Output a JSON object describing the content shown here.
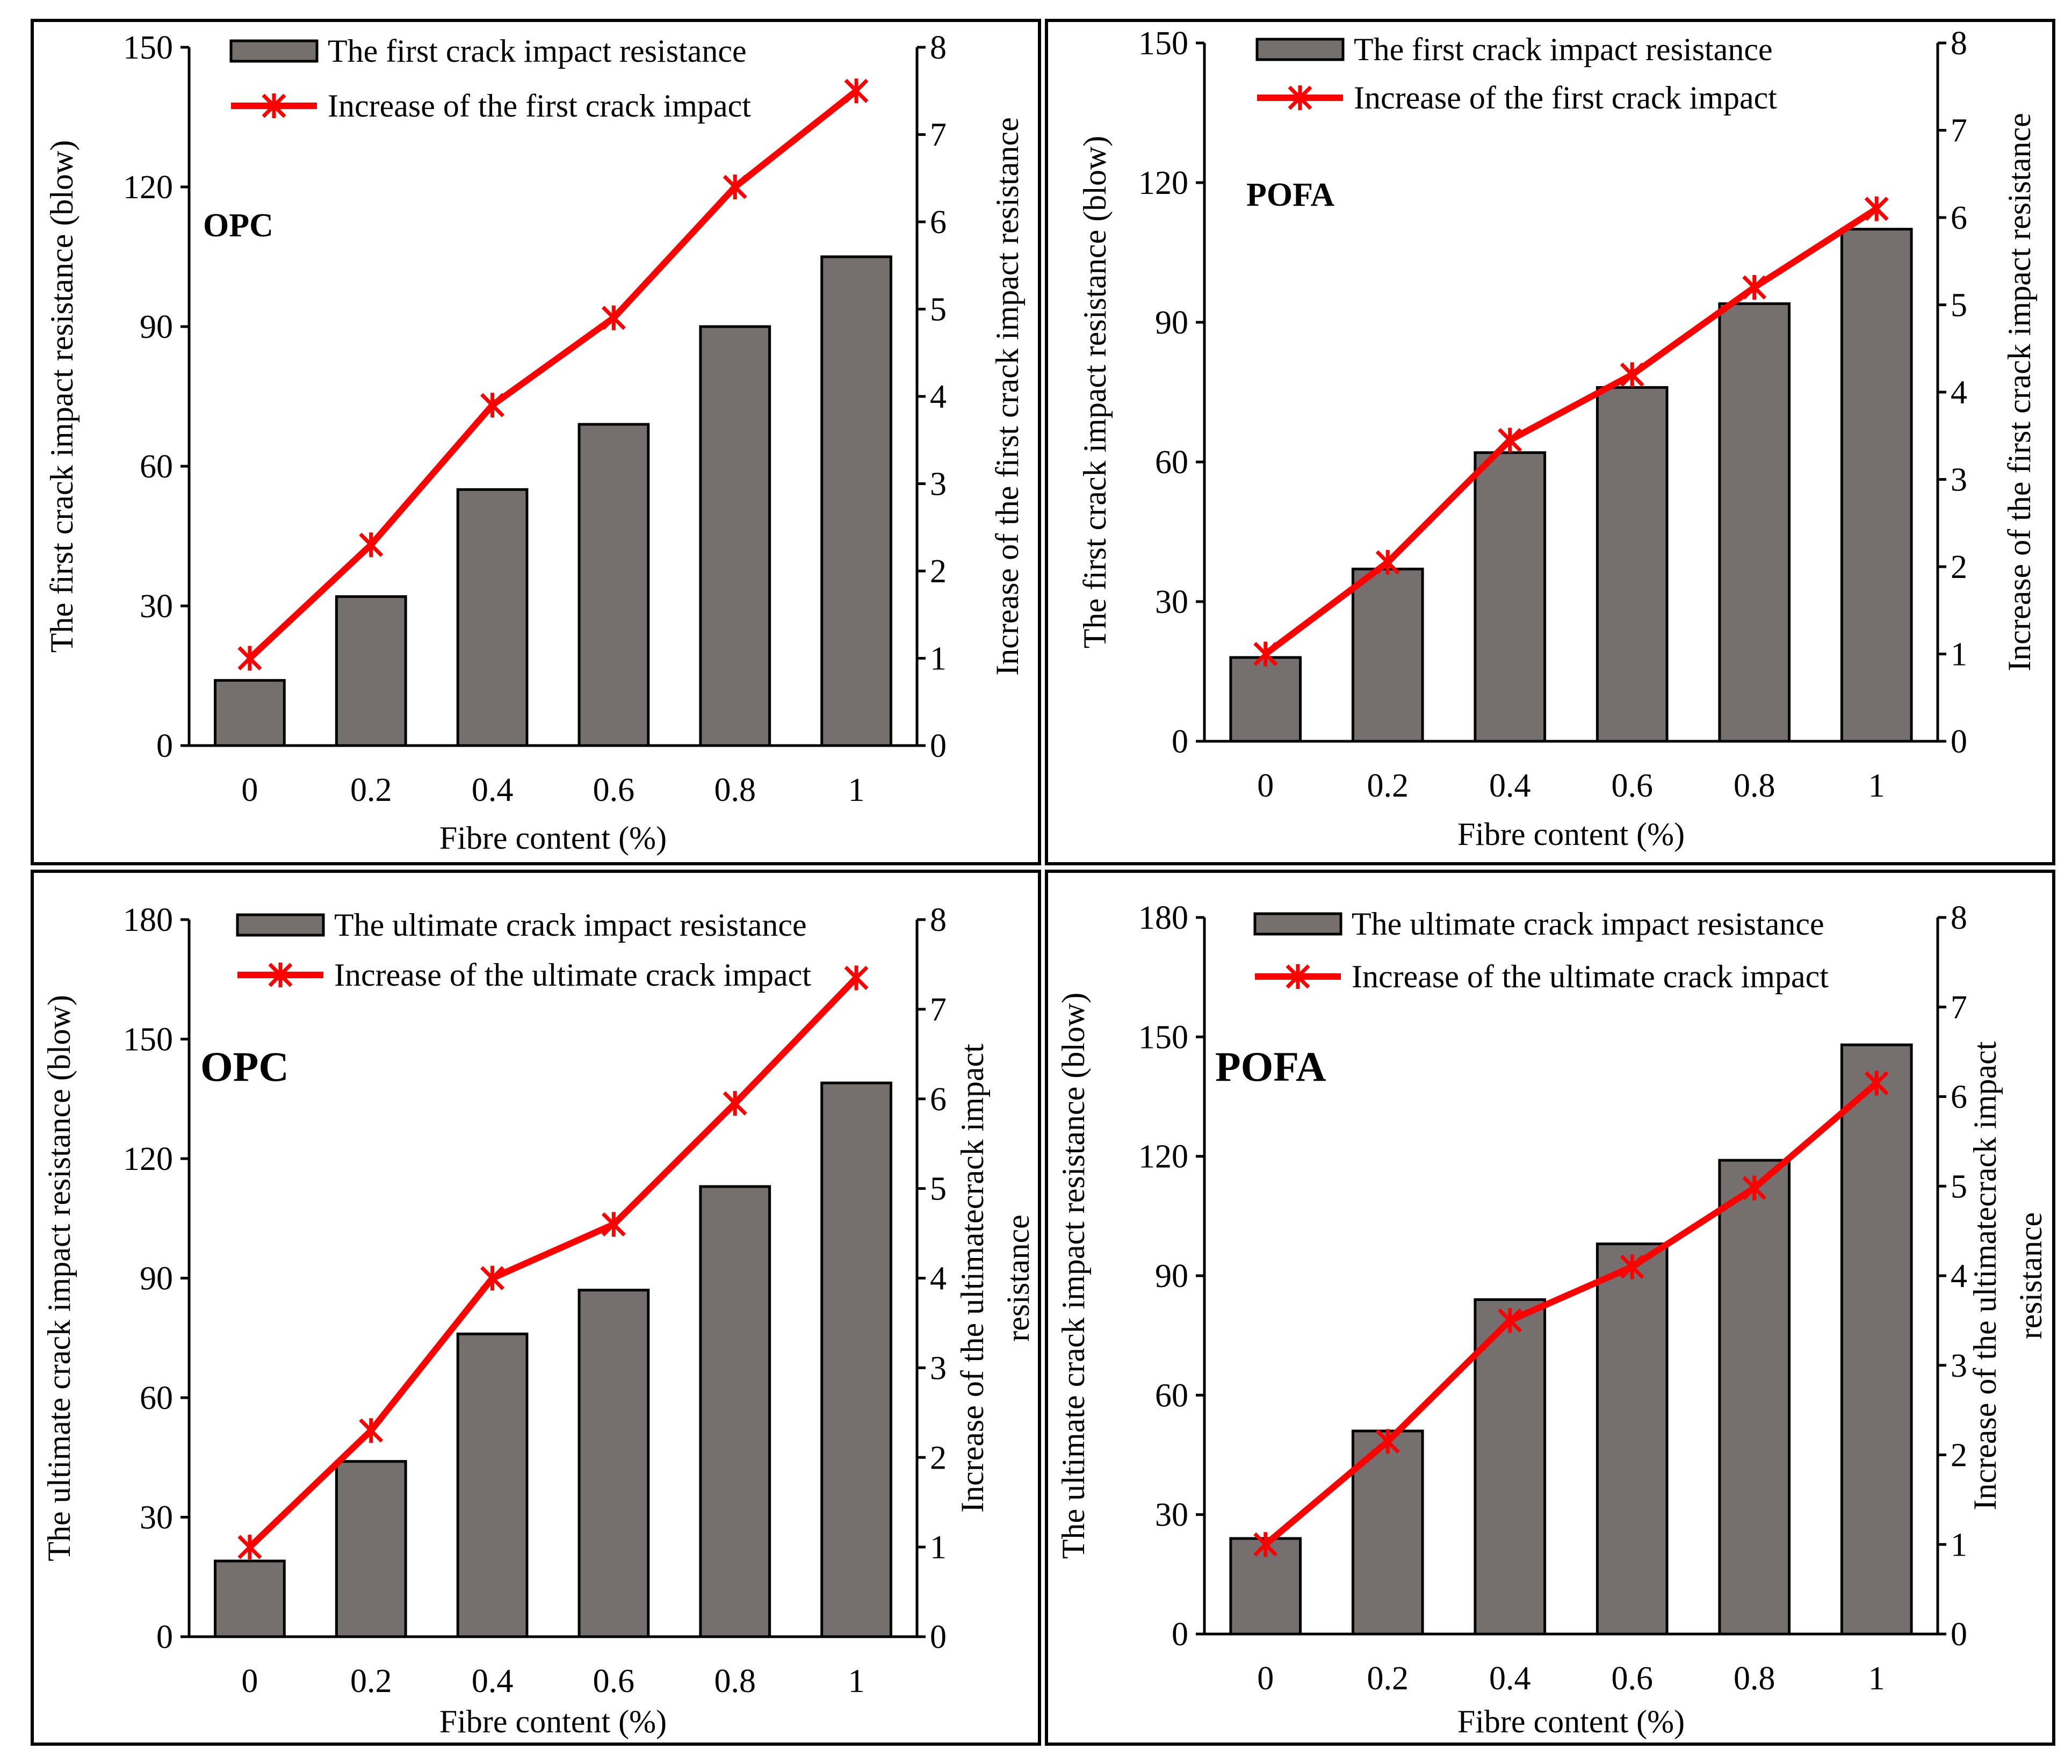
{
  "colors": {
    "bar_fill": "#756f6f",
    "line": "#ff0000",
    "frame": "#000000",
    "background": "#ffffff"
  },
  "chart_data": [
    {
      "type": "bar",
      "panel_label": "OPC",
      "categories": [
        "0",
        "0.2",
        "0.4",
        "0.6",
        "0.8",
        "1"
      ],
      "series": [
        {
          "name": "The first crack impact resistance",
          "kind": "bar",
          "axis": "left",
          "values": [
            14,
            32,
            55,
            69,
            90,
            105
          ]
        },
        {
          "name": "Increase of the first crack impact",
          "kind": "line",
          "axis": "right",
          "values": [
            1.0,
            2.3,
            3.9,
            4.9,
            6.4,
            7.5
          ]
        }
      ],
      "xlabel": "Fibre content (%)",
      "ylabel": "The first crack impact resistance (blow)",
      "y2label": [
        "Increase of the first crack impact resistance"
      ],
      "ylim": [
        0,
        150
      ],
      "yticks": [
        "0",
        "30",
        "60",
        "90",
        "120",
        "150"
      ],
      "y2lim": [
        0,
        8
      ],
      "y2ticks": [
        "0",
        "1",
        "2",
        "3",
        "4",
        "5",
        "6",
        "7",
        "8"
      ],
      "legend": "top-left"
    },
    {
      "type": "bar",
      "panel_label": "POFA",
      "categories": [
        "0",
        "0.2",
        "0.4",
        "0.6",
        "0.8",
        "1"
      ],
      "series": [
        {
          "name": "The first crack impact resistance",
          "kind": "bar",
          "axis": "left",
          "values": [
            18,
            37,
            62,
            76,
            94,
            110
          ]
        },
        {
          "name": "Increase of the first crack impact",
          "kind": "line",
          "axis": "right",
          "values": [
            1.0,
            2.05,
            3.45,
            4.2,
            5.2,
            6.1
          ]
        }
      ],
      "xlabel": "Fibre content (%)",
      "ylabel": "The first crack impact resistance (blow)",
      "y2label": [
        "Increase of the first crack impact resistance"
      ],
      "ylim": [
        0,
        150
      ],
      "yticks": [
        "0",
        "30",
        "60",
        "90",
        "120",
        "150"
      ],
      "y2lim": [
        0,
        8
      ],
      "y2ticks": [
        "0",
        "1",
        "2",
        "3",
        "4",
        "5",
        "6",
        "7",
        "8"
      ],
      "legend": "top-left"
    },
    {
      "type": "bar",
      "panel_label": "OPC",
      "categories": [
        "0",
        "0.2",
        "0.4",
        "0.6",
        "0.8",
        "1"
      ],
      "series": [
        {
          "name": "The ultimate crack impact resistance",
          "kind": "bar",
          "axis": "left",
          "values": [
            19,
            44,
            76,
            87,
            113,
            139
          ]
        },
        {
          "name": "Increase of the ultimate crack impact",
          "kind": "line",
          "axis": "right",
          "values": [
            1.0,
            2.3,
            4.0,
            4.6,
            5.95,
            7.35
          ]
        }
      ],
      "xlabel": "Fibre content (%)",
      "ylabel": "The ultimate crack impact resistance (blow)",
      "y2label": [
        "Increase of the ultimatecrack impact",
        "resistance"
      ],
      "ylim": [
        0,
        180
      ],
      "yticks": [
        "0",
        "30",
        "60",
        "90",
        "120",
        "150",
        "180"
      ],
      "y2lim": [
        0,
        8
      ],
      "y2ticks": [
        "0",
        "1",
        "2",
        "3",
        "4",
        "5",
        "6",
        "7",
        "8"
      ],
      "legend": "top-left"
    },
    {
      "type": "bar",
      "panel_label": "POFA",
      "categories": [
        "0",
        "0.2",
        "0.4",
        "0.6",
        "0.8",
        "1"
      ],
      "series": [
        {
          "name": "The ultimate crack impact resistance",
          "kind": "bar",
          "axis": "left",
          "values": [
            24,
            51,
            84,
            98,
            119,
            148
          ]
        },
        {
          "name": "Increase of the ultimate crack impact",
          "kind": "line",
          "axis": "right",
          "values": [
            1.0,
            2.15,
            3.5,
            4.1,
            4.98,
            6.15
          ]
        }
      ],
      "xlabel": "Fibre content (%)",
      "ylabel": "The ultimate crack impact resistance (blow)",
      "y2label": [
        "Increase of the ultimatecrack impact",
        "resistance"
      ],
      "ylim": [
        0,
        180
      ],
      "yticks": [
        "0",
        "30",
        "60",
        "90",
        "120",
        "150",
        "180"
      ],
      "y2lim": [
        0,
        8
      ],
      "y2ticks": [
        "0",
        "1",
        "2",
        "3",
        "4",
        "5",
        "6",
        "7",
        "8"
      ],
      "legend": "top-left"
    }
  ]
}
